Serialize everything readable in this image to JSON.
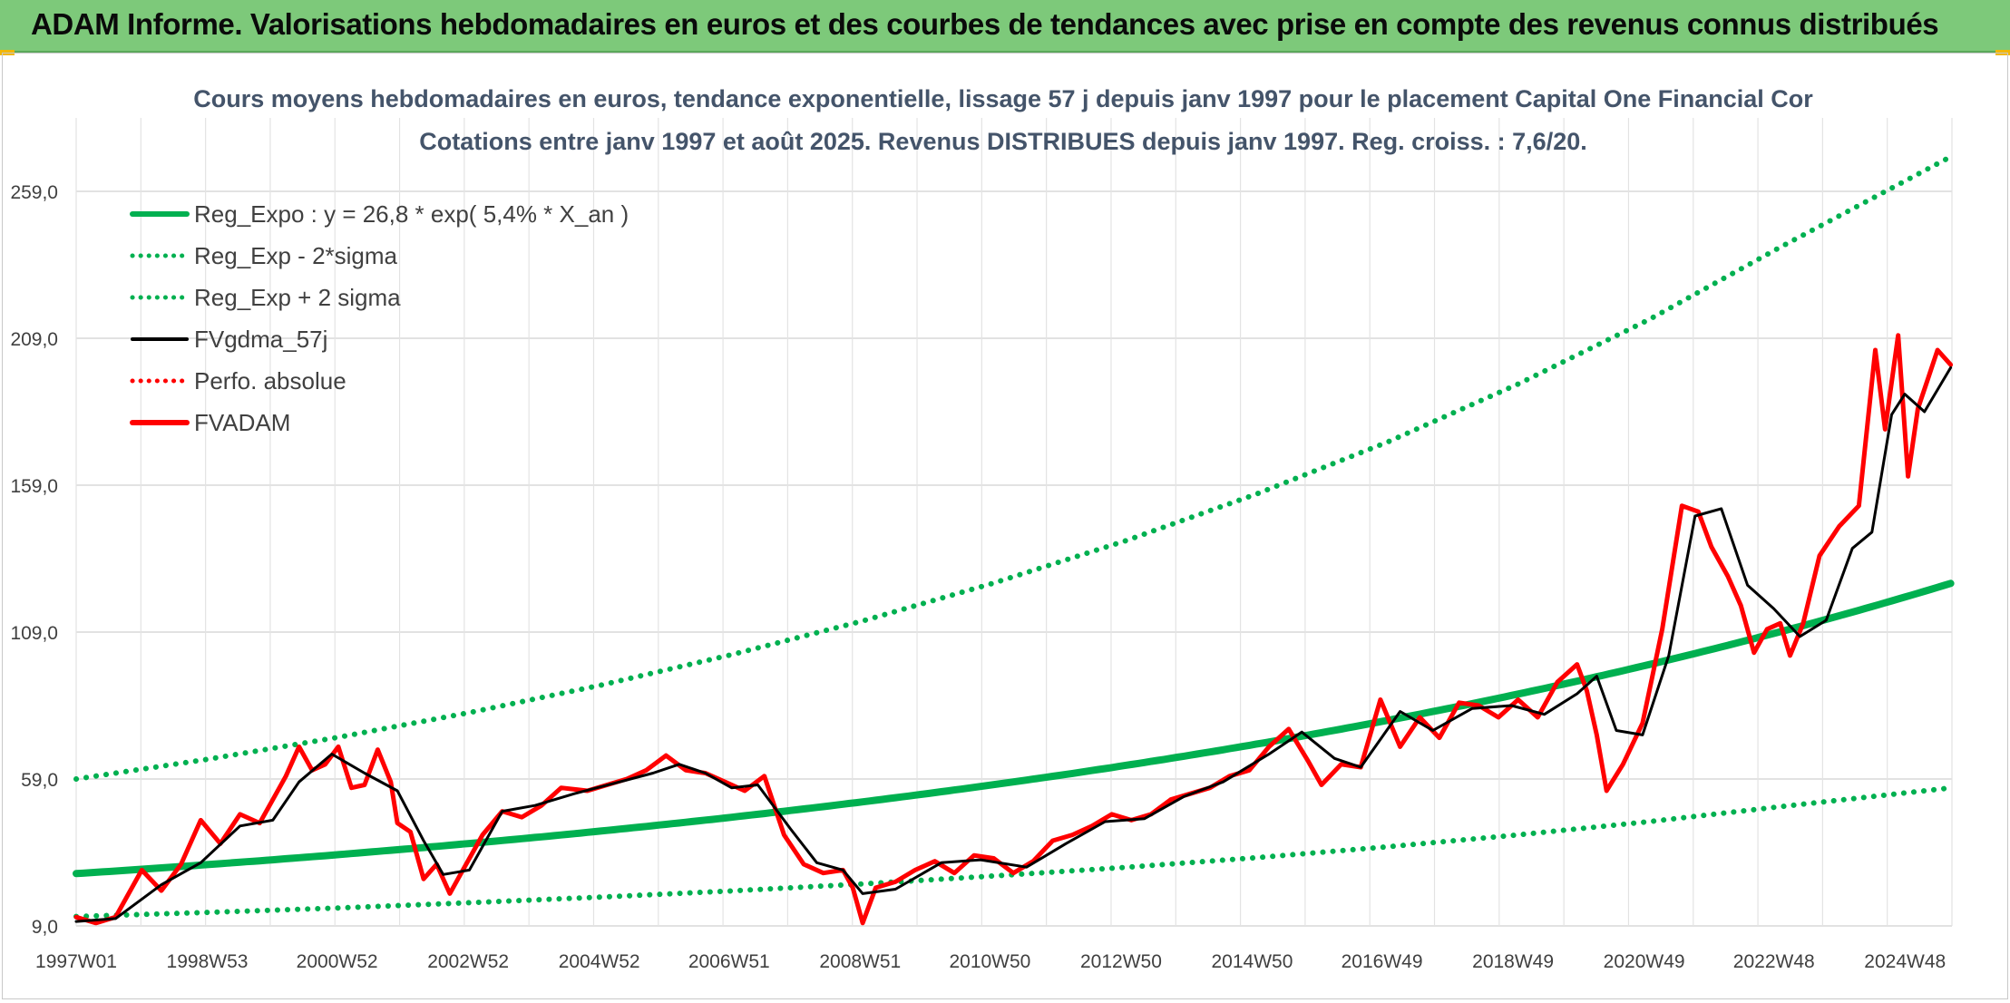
{
  "banner": {
    "title": "ADAM Informe. Valorisations hebdomadaires en euros et des courbes de tendances avec prise en compte des revenus connus distribués"
  },
  "colors": {
    "banner": "#7dc97a",
    "reg_expo": "#00b050",
    "sigma_bands": "#00b050",
    "fvgdma": "#000000",
    "perfo": "#ff0000",
    "fvadam": "#ff0000",
    "title_text": "#44546a"
  },
  "chart_data": {
    "type": "line",
    "title": "Cours moyens hebdomadaires en euros, tendance exponentielle, lissage 57 j depuis janv 1997 pour le placement Capital One Financial Cor",
    "subtitle": "Cotations entre janv 1997 et août 2025. Revenus DISTRIBUES depuis janv 1997. Reg. croiss. : 7,6/20.",
    "xlabel": "",
    "ylabel": "",
    "x_ticks": [
      "1997W01",
      "1998W53",
      "2000W52",
      "2002W52",
      "2004W52",
      "2006W51",
      "2008W51",
      "2010W50",
      "2012W50",
      "2014W50",
      "2016W49",
      "2018W49",
      "2020W49",
      "2022W48",
      "2024W48"
    ],
    "x_range": [
      1997.0,
      2025.62
    ],
    "y_ticks": [
      "9,0",
      "59,0",
      "109,0",
      "159,0",
      "209,0",
      "259,0"
    ],
    "ylim": [
      9,
      284
    ],
    "grid": true,
    "legend_position": "top-left",
    "series": [
      {
        "name": "Reg_Expo : y = 26,8 * exp( 5,4% *  X_an )",
        "style": "solid-thick",
        "color": "#00b050",
        "formula": {
          "a": 26.8,
          "rate": 0.054
        },
        "x": [
          1997.0,
          1999.0,
          2001.0,
          2003.0,
          2005.0,
          2007.0,
          2009.0,
          2011.0,
          2013.0,
          2015.0,
          2017.0,
          2019.0,
          2021.0,
          2023.0,
          2025.62
        ],
        "y": [
          26.8,
          29.8,
          33.3,
          37.1,
          41.3,
          46.0,
          51.2,
          57.1,
          63.6,
          70.8,
          78.9,
          87.9,
          97.9,
          109.1,
          123.2
        ]
      },
      {
        "name": "Reg_Exp - 2*sigma",
        "style": "dotted",
        "color": "#00b050",
        "x": [
          1997.0,
          1999.0,
          2001.0,
          2003.0,
          2005.0,
          2007.0,
          2009.0,
          2011.0,
          2013.0,
          2015.0,
          2017.0,
          2019.0,
          2021.0,
          2023.0,
          2025.62
        ],
        "y": [
          12.2,
          13.6,
          15.1,
          16.9,
          18.8,
          20.9,
          23.3,
          26.0,
          28.9,
          32.2,
          35.9,
          40.0,
          44.5,
          49.6,
          56.0
        ]
      },
      {
        "name": "Reg_Exp + 2 sigma",
        "style": "dotted",
        "color": "#00b050",
        "x": [
          1997.0,
          1999.0,
          2001.0,
          2003.0,
          2005.0,
          2007.0,
          2009.0,
          2011.0,
          2013.0,
          2015.0,
          2017.0,
          2019.0,
          2021.0,
          2023.0,
          2025.62
        ],
        "y": [
          59.0,
          65.7,
          73.2,
          81.6,
          90.9,
          101.3,
          112.8,
          125.7,
          140.0,
          155.9,
          173.6,
          193.4,
          215.4,
          240.0,
          271.0
        ]
      },
      {
        "name": "FVgdma_57j",
        "style": "solid",
        "color": "#000000",
        "x": [
          1997.0,
          1997.6,
          1998.3,
          1998.9,
          1999.5,
          2000.0,
          2000.4,
          2000.9,
          2001.4,
          2001.9,
          2002.3,
          2002.6,
          2003.0,
          2003.5,
          2004.0,
          2004.6,
          2005.2,
          2005.8,
          2006.2,
          2006.6,
          2007.0,
          2007.4,
          2007.9,
          2008.3,
          2008.7,
          2009.0,
          2009.5,
          2010.2,
          2010.8,
          2011.5,
          2012.1,
          2012.7,
          2013.3,
          2013.9,
          2014.5,
          2015.2,
          2015.7,
          2016.2,
          2016.6,
          2017.2,
          2017.7,
          2018.3,
          2018.9,
          2019.4,
          2019.9,
          2020.2,
          2020.5,
          2020.9,
          2021.3,
          2021.7,
          2022.1,
          2022.5,
          2022.9,
          2023.3,
          2023.7,
          2024.1,
          2024.4,
          2024.7,
          2024.9,
          2025.2,
          2025.6
        ],
        "y": [
          10.5,
          11.5,
          23.0,
          30.5,
          43.0,
          45.0,
          58.0,
          67.5,
          61.0,
          55.0,
          38.0,
          26.5,
          28.0,
          48.0,
          50.0,
          54.0,
          57.5,
          61.0,
          64.0,
          61.0,
          56.0,
          57.0,
          42.0,
          30.5,
          28.0,
          20.0,
          21.5,
          30.5,
          31.5,
          29.0,
          37.0,
          44.5,
          45.5,
          53.0,
          58.0,
          67.5,
          75.0,
          66.0,
          63.0,
          82.0,
          75.5,
          83.0,
          84.0,
          81.0,
          88.0,
          94.0,
          75.5,
          74.0,
          101.0,
          148.5,
          151.0,
          125.0,
          117.0,
          107.5,
          113.0,
          137.5,
          143.0,
          183.0,
          190.0,
          184.0,
          199.0
        ]
      },
      {
        "name": "Perfo. absolue",
        "style": "dotted",
        "color": "#ff0000",
        "x": [],
        "y": []
      },
      {
        "name": "FVADAM",
        "style": "solid-thick",
        "color": "#ff0000",
        "x": [
          1997.0,
          1997.3,
          1997.6,
          1998.0,
          1998.3,
          1998.6,
          1998.9,
          1999.2,
          1999.5,
          1999.8,
          2000.0,
          2000.2,
          2000.4,
          2000.6,
          2000.8,
          2001.0,
          2001.2,
          2001.4,
          2001.6,
          2001.8,
          2001.9,
          2002.1,
          2002.3,
          2002.5,
          2002.7,
          2002.9,
          2003.2,
          2003.5,
          2003.8,
          2004.1,
          2004.4,
          2004.8,
          2005.1,
          2005.4,
          2005.7,
          2006.0,
          2006.3,
          2006.6,
          2006.9,
          2007.2,
          2007.5,
          2007.8,
          2008.1,
          2008.4,
          2008.7,
          2008.85,
          2009.0,
          2009.2,
          2009.5,
          2009.8,
          2010.1,
          2010.4,
          2010.7,
          2011.0,
          2011.3,
          2011.6,
          2011.9,
          2012.2,
          2012.5,
          2012.8,
          2013.1,
          2013.4,
          2013.7,
          2014.0,
          2014.3,
          2014.6,
          2014.9,
          2015.2,
          2015.5,
          2015.8,
          2016.0,
          2016.3,
          2016.6,
          2016.9,
          2017.2,
          2017.5,
          2017.8,
          2018.1,
          2018.4,
          2018.7,
          2019.0,
          2019.3,
          2019.6,
          2019.9,
          2020.05,
          2020.2,
          2020.35,
          2020.6,
          2020.9,
          2021.2,
          2021.5,
          2021.75,
          2021.95,
          2022.2,
          2022.4,
          2022.6,
          2022.8,
          2023.0,
          2023.15,
          2023.35,
          2023.6,
          2023.9,
          2024.2,
          2024.45,
          2024.6,
          2024.8,
          2024.95,
          2025.1,
          2025.25,
          2025.4,
          2025.6
        ],
        "y": [
          12.0,
          10.0,
          12.0,
          28.0,
          21.0,
          30.0,
          45.0,
          37.0,
          47.0,
          44.0,
          52.0,
          60.0,
          70.0,
          62.0,
          64.0,
          70.0,
          56.0,
          57.0,
          69.0,
          58.0,
          44.0,
          41.0,
          25.0,
          30.0,
          20.0,
          28.0,
          40.0,
          48.0,
          46.0,
          50.0,
          56.0,
          55.0,
          57.0,
          59.0,
          62.0,
          67.0,
          62.0,
          61.0,
          58.0,
          55.0,
          60.0,
          40.0,
          30.0,
          27.0,
          28.0,
          22.0,
          10.0,
          22.0,
          24.0,
          28.0,
          31.0,
          27.0,
          33.0,
          32.0,
          27.0,
          31.0,
          38.0,
          40.0,
          43.0,
          47.0,
          45.0,
          47.0,
          52.0,
          54.0,
          56.0,
          60.0,
          62.0,
          70.0,
          76.0,
          65.0,
          57.0,
          64.0,
          63.0,
          86.0,
          70.0,
          80.0,
          73.0,
          85.0,
          84.0,
          80.0,
          86.0,
          80.0,
          92.0,
          98.0,
          89.0,
          74.0,
          55.0,
          64.0,
          78.0,
          110.0,
          152.0,
          150.0,
          138.0,
          128.0,
          118.0,
          102.0,
          110.0,
          112.0,
          101.0,
          112.0,
          135.0,
          145.0,
          152.0,
          205.0,
          178.0,
          210.0,
          162.0,
          185.0,
          195.0,
          205.0,
          200.0
        ]
      }
    ]
  }
}
